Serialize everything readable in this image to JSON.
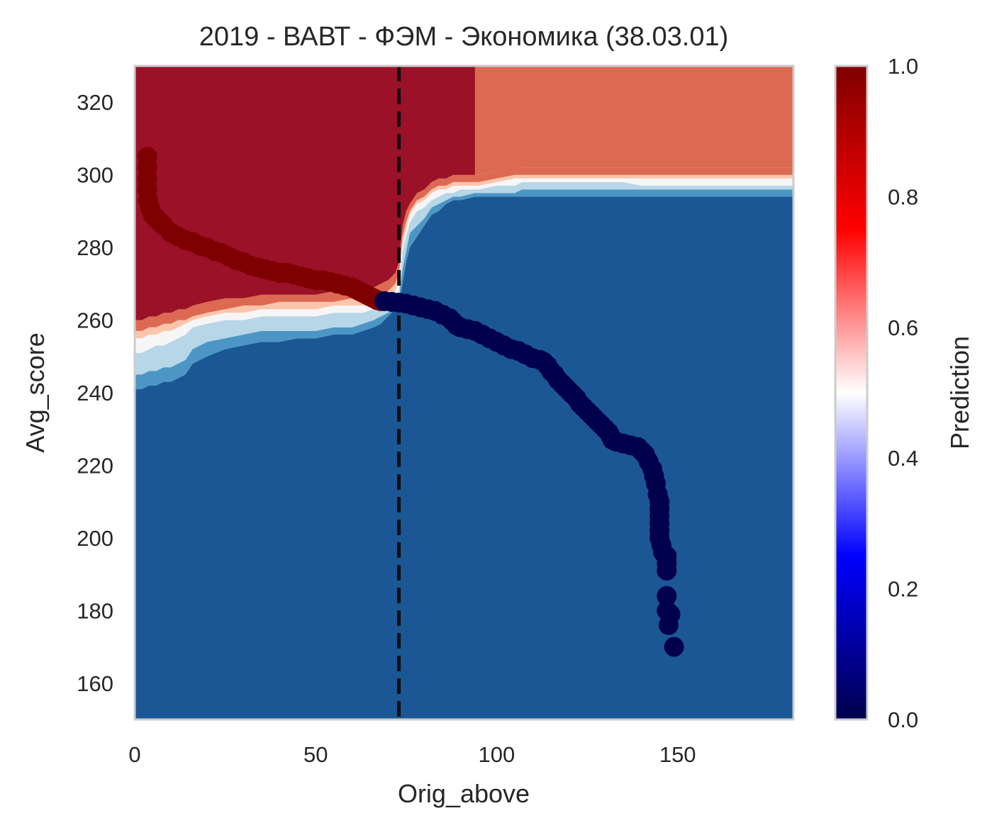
{
  "chart_data": {
    "type": "heatmap",
    "title": "2019 - ВАВТ - ФЭМ - Экономика (38.03.01)",
    "xlabel": "Orig_above",
    "ylabel": "Avg_score",
    "xlim": [
      0,
      182
    ],
    "ylim": [
      150,
      330
    ],
    "xticks": [
      0,
      50,
      100,
      150
    ],
    "yticks": [
      160,
      180,
      200,
      220,
      240,
      260,
      280,
      300,
      320
    ],
    "grid": false,
    "threshold_line": {
      "x": 73,
      "style": "dashed",
      "color": "#111111"
    },
    "colorbar": {
      "label": "Prediction",
      "range": [
        0,
        1
      ],
      "ticks": [
        "0.0",
        "0.2",
        "0.4",
        "0.6",
        "0.8",
        "1.0"
      ],
      "colormap": "seismic",
      "stops": [
        "#00004c",
        "#0000ff",
        "#ffffff",
        "#ff0000",
        "#7f0000"
      ]
    },
    "decision_regions": {
      "levels": [
        0.0,
        0.1,
        0.3,
        0.5,
        0.6,
        0.7,
        0.9,
        1.0
      ],
      "level_colors": [
        "#1b5795",
        "#4b96c4",
        "#b7d6e8",
        "#f6f6f6",
        "#fbc5ab",
        "#dc6a53",
        "#9b1128"
      ],
      "x": [
        0,
        2,
        4,
        6,
        8,
        10,
        12,
        14,
        16,
        20,
        25,
        30,
        35,
        40,
        45,
        50,
        55,
        60,
        63,
        66,
        68,
        70,
        72,
        73,
        74,
        75,
        76,
        78,
        80,
        82,
        84,
        86,
        88,
        90,
        94,
        95,
        100,
        105,
        107,
        110,
        115,
        120,
        125,
        130,
        135,
        140,
        150,
        160,
        170,
        182
      ],
      "boundaries": [
        [
          241,
          241,
          242,
          242,
          243,
          243,
          244,
          245,
          248,
          250,
          252,
          253,
          254,
          254,
          255,
          255,
          256,
          256,
          257,
          258,
          259,
          261,
          263,
          264,
          270,
          276,
          280,
          283,
          286,
          289,
          290,
          292,
          293,
          293,
          294,
          294,
          294,
          294,
          294,
          294,
          294,
          294,
          294,
          294,
          294,
          294,
          294,
          294,
          294,
          294
        ],
        [
          245,
          245,
          246,
          246,
          247,
          247,
          248,
          249,
          252,
          254,
          255,
          256,
          257,
          257,
          257,
          257,
          258,
          258,
          259,
          260,
          261,
          262,
          264,
          266,
          274,
          279,
          284,
          286,
          288,
          291,
          292,
          293,
          294,
          294,
          295,
          295,
          295,
          295,
          296,
          296,
          296,
          296,
          296,
          296,
          296,
          296,
          296,
          296,
          296,
          296
        ],
        [
          251,
          251,
          252,
          253,
          253,
          254,
          255,
          256,
          258,
          259,
          260,
          260,
          261,
          261,
          261,
          261,
          262,
          262,
          262,
          263,
          263,
          264,
          266,
          268,
          279,
          283,
          287,
          290,
          291,
          293,
          294,
          295,
          295,
          296,
          296,
          296,
          297,
          297,
          298,
          298,
          298,
          298,
          298,
          298,
          298,
          297,
          297,
          297,
          297,
          297
        ],
        [
          255,
          255,
          256,
          256,
          257,
          257,
          258,
          259,
          260,
          261,
          262,
          262,
          263,
          263,
          263,
          263,
          264,
          264,
          264,
          265,
          265,
          266,
          268,
          271,
          281,
          285,
          289,
          292,
          293,
          295,
          296,
          296,
          297,
          297,
          297,
          297,
          298,
          299,
          299,
          299,
          299,
          299,
          299,
          299,
          299,
          299,
          299,
          299,
          299,
          299
        ],
        [
          257,
          257,
          258,
          258,
          259,
          259,
          260,
          260,
          261,
          262,
          263,
          264,
          264,
          265,
          265,
          265,
          265,
          266,
          266,
          267,
          267,
          268,
          270,
          273,
          283,
          287,
          290,
          293,
          294,
          296,
          297,
          297,
          298,
          298,
          298,
          298,
          299,
          300,
          300,
          300,
          300,
          300,
          300,
          300,
          300,
          300,
          300,
          300,
          300,
          300
        ],
        [
          260,
          260,
          261,
          261,
          262,
          262,
          263,
          263,
          264,
          265,
          266,
          266,
          267,
          267,
          267,
          267,
          268,
          268,
          268,
          269,
          270,
          271,
          273,
          276,
          286,
          290,
          292,
          295,
          296,
          298,
          299,
          299,
          300,
          300,
          300,
          300,
          301,
          301,
          302,
          302,
          302,
          302,
          302,
          302,
          302,
          302,
          302,
          302,
          302,
          302
        ]
      ],
      "dark_red_right_edge_x": 94
    },
    "series": [
      {
        "name": "1",
        "color": "#7f0000",
        "points": [
          [
            3.5,
            305
          ],
          [
            3.5,
            302
          ],
          [
            3.5,
            299
          ],
          [
            3.5,
            296
          ],
          [
            3.7,
            293
          ],
          [
            4.2,
            291
          ],
          [
            5,
            289
          ],
          [
            6,
            288
          ],
          [
            7,
            287
          ],
          [
            8,
            286
          ],
          [
            10,
            284
          ],
          [
            12,
            283
          ],
          [
            14,
            282
          ],
          [
            16,
            281.5
          ],
          [
            18,
            280.5
          ],
          [
            20,
            280
          ],
          [
            22,
            279
          ],
          [
            24,
            278.5
          ],
          [
            26,
            277.5
          ],
          [
            28,
            276.5
          ],
          [
            30,
            276
          ],
          [
            32,
            275
          ],
          [
            34,
            274.5
          ],
          [
            36,
            274
          ],
          [
            38,
            273.5
          ],
          [
            40,
            273
          ],
          [
            42,
            273
          ],
          [
            44,
            272.5
          ],
          [
            46,
            272
          ],
          [
            48,
            271.5
          ],
          [
            50,
            271
          ],
          [
            52,
            271
          ],
          [
            54,
            270.5
          ],
          [
            56,
            270
          ],
          [
            58,
            269.5
          ],
          [
            60,
            269
          ],
          [
            61,
            268.5
          ],
          [
            62,
            268
          ],
          [
            63,
            267.5
          ],
          [
            64,
            267
          ],
          [
            65,
            266.5
          ],
          [
            66,
            266
          ],
          [
            67,
            265.5
          ],
          [
            68,
            265.2
          ]
        ]
      },
      {
        "name": "0",
        "color": "#00004c",
        "points": [
          [
            69,
            265.2
          ],
          [
            71,
            265
          ],
          [
            73,
            264.8
          ],
          [
            75,
            264.5
          ],
          [
            77,
            264
          ],
          [
            79,
            263.5
          ],
          [
            81,
            263
          ],
          [
            83,
            262.5
          ],
          [
            85,
            261.5
          ],
          [
            87,
            260.5
          ],
          [
            88,
            259.5
          ],
          [
            89,
            258.5
          ],
          [
            90,
            258
          ],
          [
            92,
            257.5
          ],
          [
            94,
            257
          ],
          [
            96,
            256
          ],
          [
            98,
            255
          ],
          [
            100,
            254
          ],
          [
            102,
            253
          ],
          [
            104,
            252
          ],
          [
            106,
            251.5
          ],
          [
            108,
            250.5
          ],
          [
            110,
            249.5
          ],
          [
            112,
            249
          ],
          [
            113,
            248.5
          ],
          [
            114,
            247.5
          ],
          [
            115,
            246
          ],
          [
            116,
            245
          ],
          [
            117,
            243.5
          ],
          [
            118,
            242.5
          ],
          [
            119,
            241.5
          ],
          [
            120,
            240.5
          ],
          [
            121,
            239.5
          ],
          [
            122,
            238.5
          ],
          [
            123,
            237
          ],
          [
            124,
            236
          ],
          [
            125,
            235
          ],
          [
            126,
            234
          ],
          [
            127,
            233
          ],
          [
            128,
            232
          ],
          [
            129,
            231
          ],
          [
            130,
            230
          ],
          [
            131,
            229
          ],
          [
            131.5,
            228
          ],
          [
            132,
            227
          ],
          [
            133,
            226.5
          ],
          [
            135,
            226
          ],
          [
            137,
            225.5
          ],
          [
            139,
            225
          ],
          [
            140,
            224
          ],
          [
            141,
            223
          ],
          [
            142,
            221
          ],
          [
            143,
            219
          ],
          [
            143.5,
            217
          ],
          [
            144,
            215
          ],
          [
            144.5,
            212
          ],
          [
            145,
            210
          ],
          [
            145,
            208
          ],
          [
            145,
            206
          ],
          [
            145,
            204
          ],
          [
            145,
            202
          ],
          [
            145,
            200
          ],
          [
            145.5,
            198
          ],
          [
            146,
            196
          ],
          [
            147,
            195
          ],
          [
            147,
            193
          ],
          [
            147,
            191
          ],
          [
            147,
            184
          ],
          [
            147,
            180
          ],
          [
            148,
            179
          ],
          [
            147.5,
            176
          ],
          [
            149,
            170
          ]
        ]
      }
    ]
  }
}
